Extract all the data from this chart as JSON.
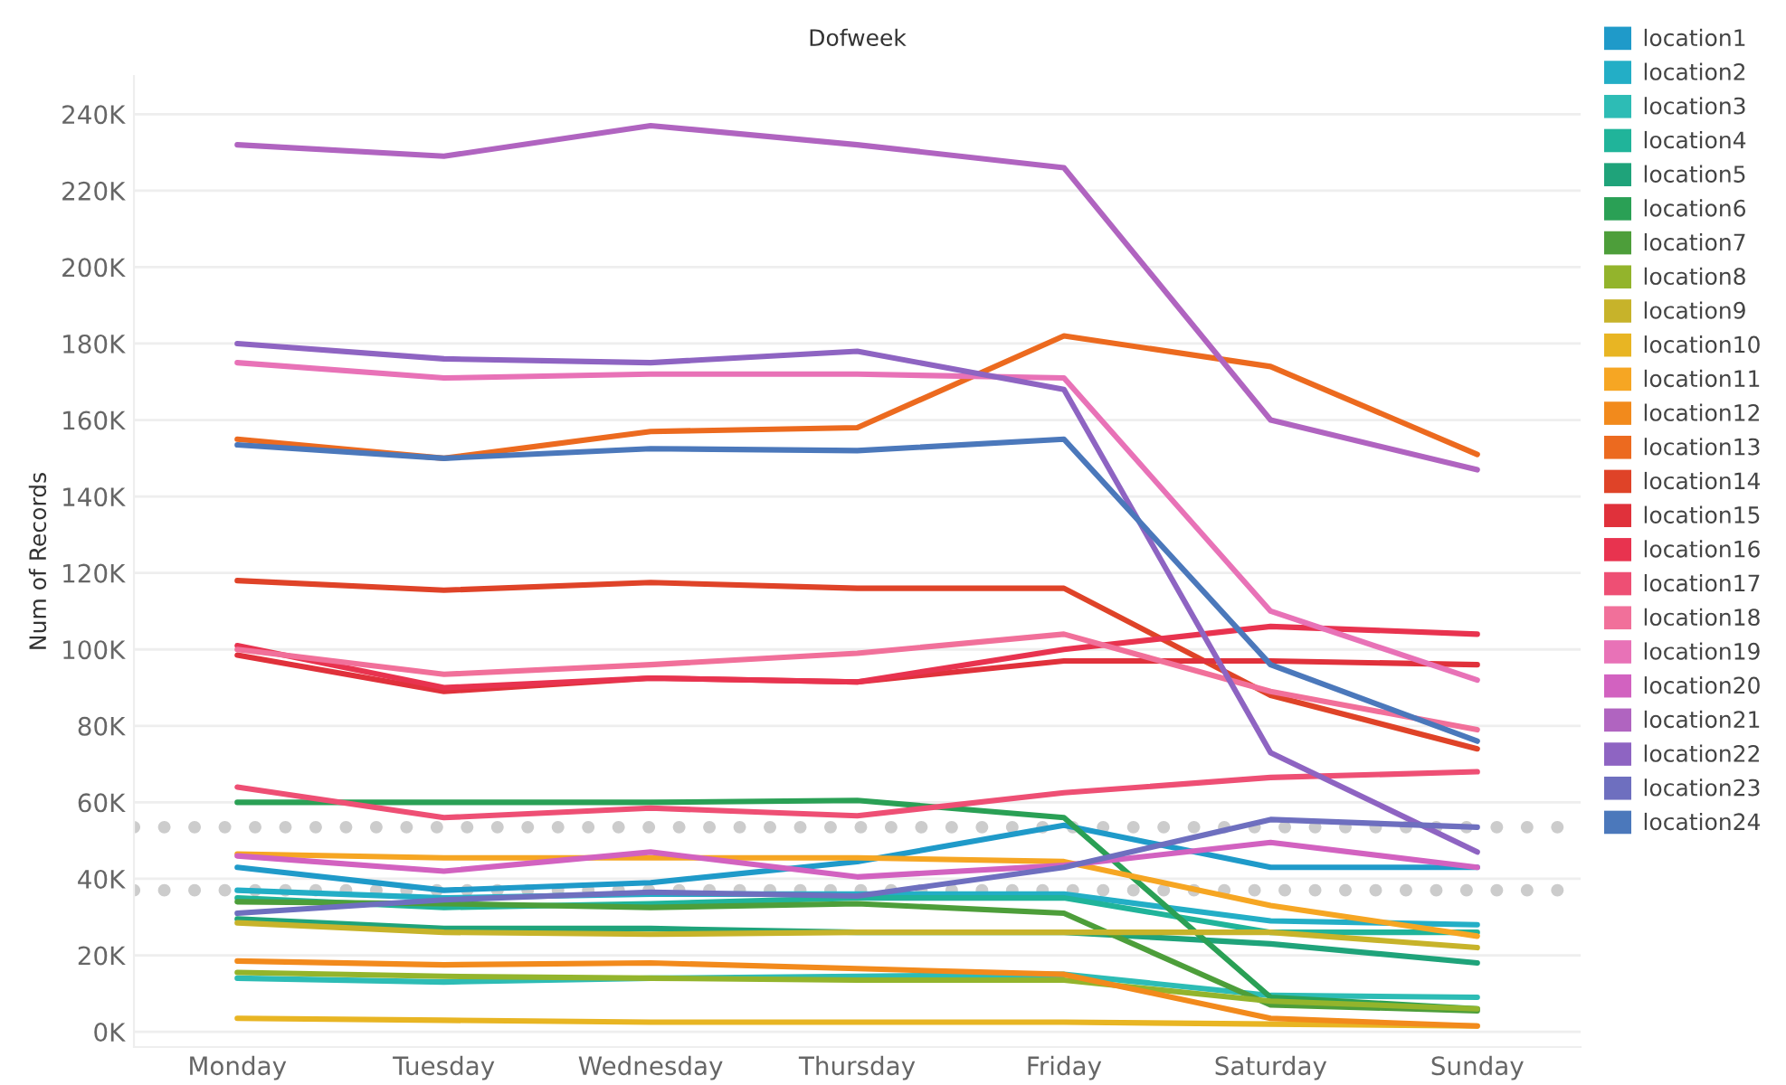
{
  "chart_data": {
    "type": "line",
    "title": "Dofweek",
    "ylabel": "Num of Records",
    "categories": [
      "Monday",
      "Tuesday",
      "Wednesday",
      "Thursday",
      "Friday",
      "Saturday",
      "Sunday"
    ],
    "ylim": [
      -4000,
      250000
    ],
    "yticks": [
      {
        "value": 0,
        "label": "0K"
      },
      {
        "value": 20000,
        "label": "20K"
      },
      {
        "value": 40000,
        "label": "40K"
      },
      {
        "value": 60000,
        "label": "60K"
      },
      {
        "value": 80000,
        "label": "80K"
      },
      {
        "value": 100000,
        "label": "100K"
      },
      {
        "value": 120000,
        "label": "120K"
      },
      {
        "value": 140000,
        "label": "140K"
      },
      {
        "value": 160000,
        "label": "160K"
      },
      {
        "value": 180000,
        "label": "180K"
      },
      {
        "value": 200000,
        "label": "200K"
      },
      {
        "value": 220000,
        "label": "220K"
      },
      {
        "value": 240000,
        "label": "240K"
      }
    ],
    "grid": "y",
    "legend": "right",
    "marker": "none",
    "line_style": "solid",
    "ref_lines": [
      {
        "axis": "y",
        "value": 53500,
        "color": "#cccccc",
        "line_style": "dotted"
      },
      {
        "axis": "y",
        "value": 37000,
        "color": "#cccccc",
        "line_style": "dotted"
      }
    ],
    "series": [
      {
        "name": "location1",
        "color": "#1f9ac9",
        "values": [
          43000,
          37000,
          39000,
          44500,
          54000,
          43000,
          43000
        ]
      },
      {
        "name": "location2",
        "color": "#23aec6",
        "values": [
          37000,
          35000,
          36000,
          36000,
          36000,
          29000,
          28000
        ]
      },
      {
        "name": "location3",
        "color": "#2dbcb5",
        "values": [
          14000,
          13000,
          14000,
          14500,
          15000,
          9500,
          9000
        ]
      },
      {
        "name": "location4",
        "color": "#20b49a",
        "values": [
          35000,
          32500,
          33500,
          35000,
          35000,
          26000,
          26000
        ]
      },
      {
        "name": "location5",
        "color": "#1fa37a",
        "values": [
          29500,
          27000,
          27000,
          26000,
          26000,
          23000,
          18000
        ]
      },
      {
        "name": "location6",
        "color": "#2aa055",
        "values": [
          60000,
          60000,
          60000,
          60500,
          56000,
          9000,
          6000
        ]
      },
      {
        "name": "location7",
        "color": "#4d9e3a",
        "values": [
          34000,
          33500,
          32500,
          33500,
          31000,
          7000,
          5500
        ]
      },
      {
        "name": "location8",
        "color": "#93b42c",
        "values": [
          15500,
          14500,
          14000,
          13500,
          13500,
          8000,
          6000
        ]
      },
      {
        "name": "location9",
        "color": "#c7b32a",
        "values": [
          28500,
          26000,
          25500,
          26000,
          26000,
          26000,
          22000
        ]
      },
      {
        "name": "location10",
        "color": "#e8b523",
        "values": [
          3500,
          3000,
          2500,
          2500,
          2500,
          2000,
          1500
        ]
      },
      {
        "name": "location11",
        "color": "#f6a623",
        "values": [
          46500,
          45500,
          45500,
          45500,
          44500,
          33000,
          25000
        ]
      },
      {
        "name": "location12",
        "color": "#f28a1c",
        "values": [
          18500,
          17500,
          18000,
          16500,
          15000,
          3500,
          1500
        ]
      },
      {
        "name": "location13",
        "color": "#ec6a1f",
        "values": [
          155000,
          150000,
          157000,
          158000,
          182000,
          174000,
          151000
        ]
      },
      {
        "name": "location14",
        "color": "#df4328",
        "values": [
          118000,
          115500,
          117500,
          116000,
          116000,
          88000,
          74000
        ]
      },
      {
        "name": "location15",
        "color": "#e0313b",
        "values": [
          98500,
          89000,
          92500,
          91500,
          97000,
          97000,
          96000
        ]
      },
      {
        "name": "location16",
        "color": "#e8334f",
        "values": [
          101000,
          90000,
          92500,
          91500,
          100000,
          106000,
          104000
        ]
      },
      {
        "name": "location17",
        "color": "#ee4f74",
        "values": [
          64000,
          56000,
          58500,
          56500,
          62500,
          66500,
          68000
        ]
      },
      {
        "name": "location18",
        "color": "#f1709a",
        "values": [
          100000,
          93500,
          96000,
          99000,
          104000,
          89000,
          79000
        ]
      },
      {
        "name": "location19",
        "color": "#e872b7",
        "values": [
          175000,
          171000,
          172000,
          172000,
          171000,
          110000,
          92000
        ]
      },
      {
        "name": "location20",
        "color": "#d262c0",
        "values": [
          46000,
          42000,
          47000,
          40500,
          43500,
          49500,
          43000
        ]
      },
      {
        "name": "location21",
        "color": "#b064c0",
        "values": [
          232000,
          229000,
          237000,
          232000,
          226000,
          160000,
          147000
        ]
      },
      {
        "name": "location22",
        "color": "#8e64c2",
        "values": [
          180000,
          176000,
          175000,
          178000,
          168000,
          73000,
          47000
        ]
      },
      {
        "name": "location23",
        "color": "#6e6fbf",
        "values": [
          31000,
          34500,
          36500,
          35500,
          43000,
          55500,
          53500
        ]
      },
      {
        "name": "location24",
        "color": "#4b78bb",
        "values": [
          153500,
          150000,
          152500,
          152000,
          155000,
          96000,
          76000
        ]
      }
    ]
  }
}
